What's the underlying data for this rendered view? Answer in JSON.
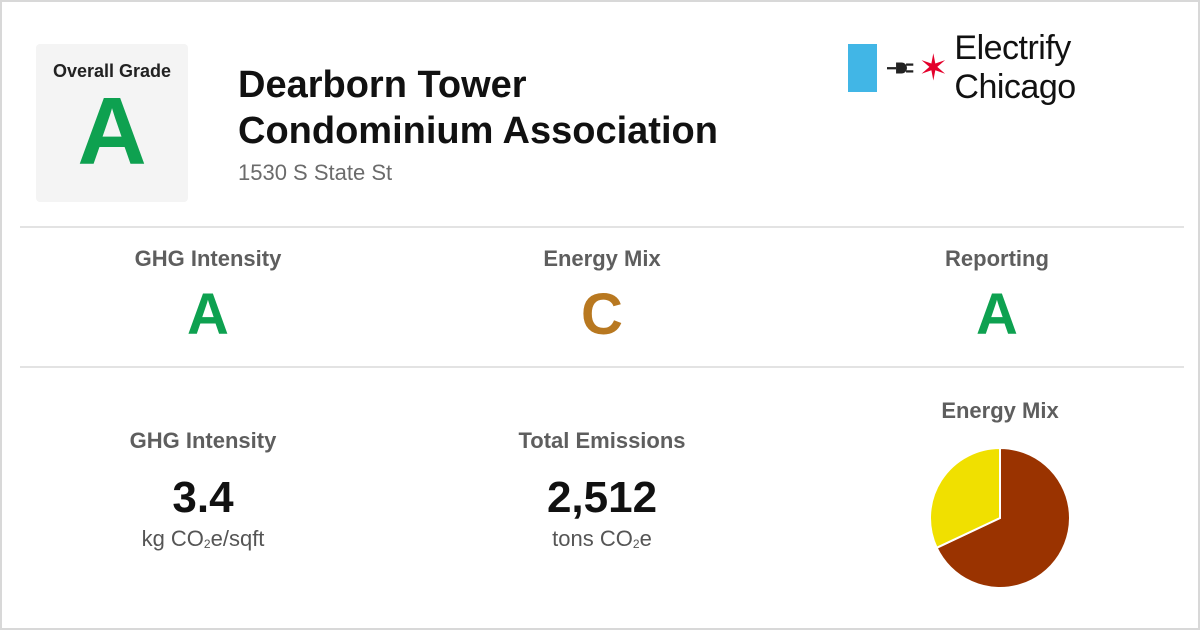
{
  "building": {
    "name_line1": "Dearborn Tower",
    "name_line2": "Condominium Association",
    "address": "1530 S State St"
  },
  "overall": {
    "label": "Overall Grade",
    "grade": "A"
  },
  "brand": {
    "name": "Electrify Chicago",
    "icons": [
      "chicago-flag-stripe-icon",
      "plug-icon",
      "red-star-icon"
    ]
  },
  "grades": [
    {
      "label": "GHG Intensity",
      "grade": "A",
      "color": "#0ea150"
    },
    {
      "label": "Energy Mix",
      "grade": "C",
      "color": "#b87820"
    },
    {
      "label": "Reporting",
      "grade": "A",
      "color": "#0ea150"
    }
  ],
  "metrics": {
    "ghg": {
      "label": "GHG Intensity",
      "value": "3.4",
      "unit_pre": "kg CO",
      "unit_sub": "2",
      "unit_post": "e/sqft"
    },
    "emissions": {
      "label": "Total Emissions",
      "value": "2,512",
      "unit_pre": "tons CO",
      "unit_sub": "2",
      "unit_post": "e"
    }
  },
  "colors": {
    "grade_a": "#0ea150",
    "grade_c": "#b87820",
    "brand_blue": "#41b6e6",
    "brand_red": "#e4002b"
  },
  "chart_data": {
    "type": "pie",
    "title": "Energy Mix",
    "slices": [
      {
        "value": 0.68,
        "color": "#9a3300"
      },
      {
        "value": 0.32,
        "color": "#f0e000"
      }
    ]
  }
}
